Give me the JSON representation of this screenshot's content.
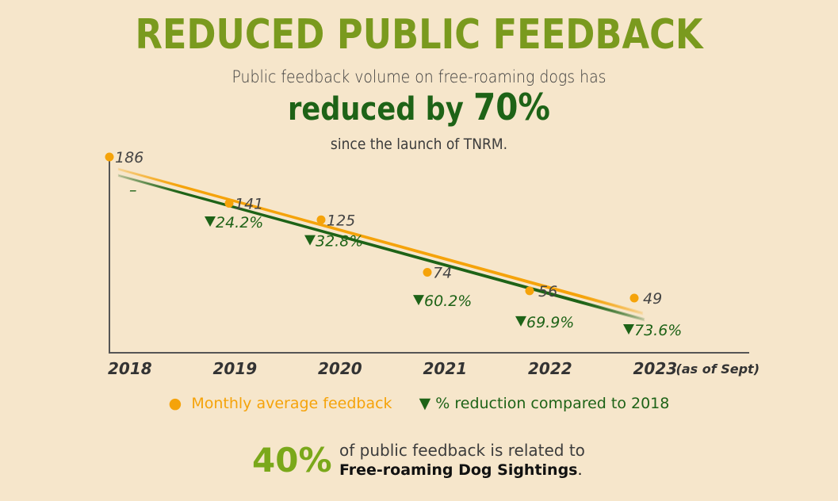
{
  "header": {
    "title": "REDUCED PUBLIC FEEDBACK",
    "subtitle": "Public feedback volume on free-roaming dogs has",
    "headline_prefix": "reduced by ",
    "headline_value": "70%",
    "since": "since the launch of TNRM."
  },
  "colors": {
    "title": "#7a9a1e",
    "headline": "#1e6317",
    "orange": "#f5a30a",
    "green": "#1e6317",
    "background": "#f6e6cb",
    "axis": "#555555"
  },
  "chart_data": {
    "type": "line",
    "title": "REDUCED PUBLIC FEEDBACK",
    "categories": [
      "2018",
      "2019",
      "2020",
      "2021",
      "2022",
      "2023"
    ],
    "category_notes": [
      "",
      "",
      "",
      "",
      "",
      "(as of Sept)"
    ],
    "series": [
      {
        "name": "Monthly average feedback",
        "marker": "circle",
        "color": "#f5a30a",
        "values": [
          186,
          141,
          125,
          74,
          56,
          49
        ],
        "labels": [
          "186",
          "141",
          "125",
          "74",
          "56",
          "49"
        ]
      },
      {
        "name": "% reduction compared to 2018",
        "marker": "triangle-down",
        "color": "#1e6317",
        "values": [
          0,
          24.2,
          32.8,
          60.2,
          69.9,
          73.6
        ],
        "labels": [
          "–",
          "24.2%",
          "32.8%",
          "60.2%",
          "69.9%",
          "73.6%"
        ]
      }
    ],
    "trendlines": [
      "orange trend line",
      "green trend line"
    ],
    "xlabel": "",
    "ylabel": "",
    "ylim": [
      0,
      200
    ],
    "grid": false,
    "legend": "bottom-center"
  },
  "legend": {
    "items": [
      {
        "marker": "●",
        "label": "Monthly average feedback"
      },
      {
        "marker": "▼",
        "label": "% reduction compared to 2018"
      }
    ]
  },
  "footer": {
    "value": "40%",
    "line1": "of public feedback is related to",
    "line2_bold": "Free-roaming Dog Sightings",
    "line2_end": "."
  }
}
